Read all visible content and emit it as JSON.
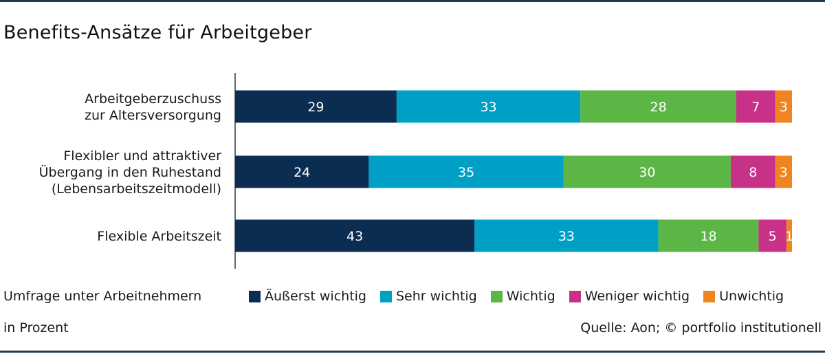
{
  "title": "Benefits-Ansätze für Arbeitgeber",
  "footer": {
    "survey": "Umfrage unter Arbeitnehmern",
    "unit": "in Prozent",
    "source": "Quelle: Aon; © portfolio institutionell"
  },
  "colors": {
    "rule": "#1f3a52",
    "axis": "#333333"
  },
  "chart_data": {
    "type": "bar",
    "orientation": "horizontal",
    "stacked": true,
    "title": "Benefits-Ansätze für Arbeitgeber",
    "categories": [
      [
        "Arbeitgeberzuschuss",
        "zur Altersversorgung"
      ],
      [
        "Flexibler und attraktiver",
        "Übergang in den Ruhestand",
        "(Lebensarbeitszeitmodell)"
      ],
      [
        "Flexible Arbeitszeit"
      ]
    ],
    "series": [
      {
        "name": "Äußerst wichtig",
        "color": "#0c2d52",
        "values": [
          29,
          24,
          43
        ]
      },
      {
        "name": "Sehr wichtig",
        "color": "#00a0c6",
        "values": [
          33,
          35,
          33
        ]
      },
      {
        "name": "Wichtig",
        "color": "#5cb646",
        "values": [
          28,
          30,
          18
        ]
      },
      {
        "name": "Weniger wichtig",
        "color": "#c73188",
        "values": [
          7,
          8,
          5
        ]
      },
      {
        "name": "Unwichtig",
        "color": "#f08420",
        "values": [
          3,
          3,
          1
        ]
      }
    ],
    "xlim": [
      0,
      100
    ],
    "grid": false,
    "legend_position": "bottom"
  }
}
